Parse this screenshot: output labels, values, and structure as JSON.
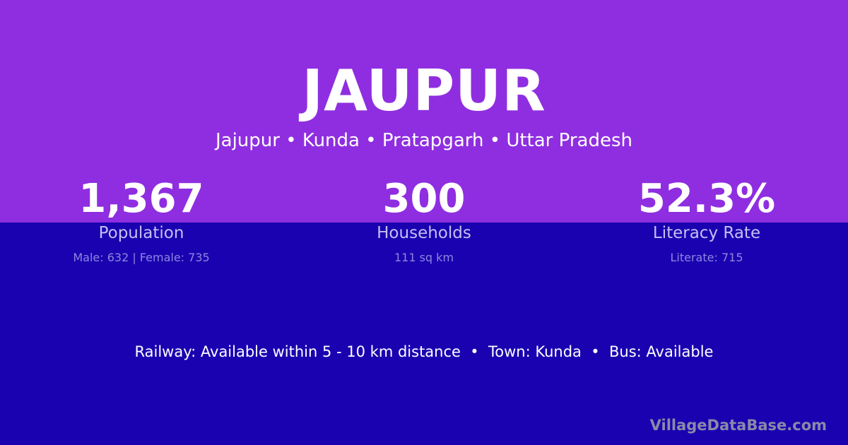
{
  "colors": {
    "top_bg": "#8f2ee0",
    "bottom_bg": "#1b02b0"
  },
  "title": "JAUPUR",
  "subtitle": "Jajupur • Kunda • Pratapgarh • Uttar Pradesh",
  "stats": [
    {
      "value": "1,367",
      "label": "Population",
      "detail": "Male: 632 | Female: 735"
    },
    {
      "value": "300",
      "label": "Households",
      "detail": "111 sq km"
    },
    {
      "value": "52.3%",
      "label": "Literacy Rate",
      "detail": "Literate: 715"
    }
  ],
  "facilities": "Railway: Available within 5 - 10 km distance  •  Town: Kunda  •  Bus: Available",
  "brand": "VillageDataBase.com"
}
